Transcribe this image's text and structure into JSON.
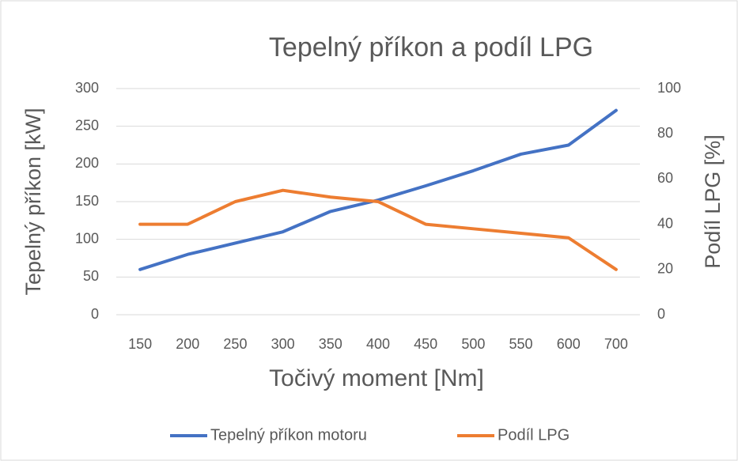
{
  "chart_data": {
    "type": "line",
    "title": "Tepelný příkon a podíl LPG",
    "x_label": "Točivý moment [Nm]",
    "y_label": "Tepelný příkon [kW]",
    "y2_label": "Podíl LPG [%]",
    "categories": [
      "150",
      "200",
      "250",
      "300",
      "350",
      "400",
      "450",
      "500",
      "550",
      "600",
      "700"
    ],
    "series": [
      {
        "name": "Tepelný příkon motoru",
        "color": "#4472c4",
        "values": [
          60,
          80,
          95,
          110,
          137,
          152,
          171,
          191,
          213,
          225,
          271
        ]
      },
      {
        "name": "Podíl LPG",
        "color": "#ed7d31",
        "axis": "y2",
        "values": [
          40,
          40,
          50,
          55,
          52,
          50,
          40,
          38,
          36,
          34,
          20
        ]
      }
    ],
    "ylim": [
      0,
      300
    ],
    "yticks": [
      0,
      50,
      100,
      150,
      200,
      250,
      300
    ],
    "y2lim": [
      0,
      100
    ],
    "y2ticks": [
      0,
      20,
      40,
      60,
      80,
      100
    ],
    "grid": true,
    "legend": "bottom"
  }
}
